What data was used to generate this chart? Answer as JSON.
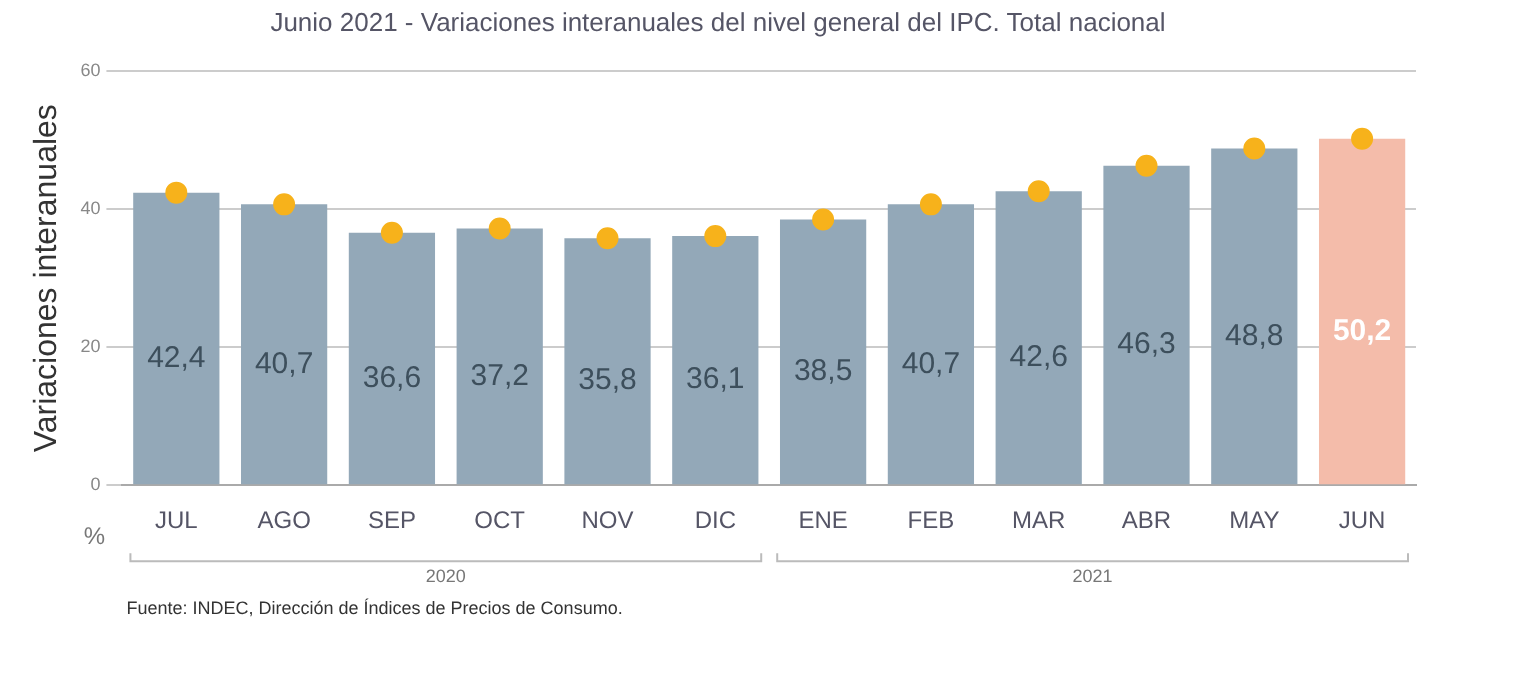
{
  "chart_data": {
    "type": "bar",
    "title": "Junio 2021 - Variaciones interanuales del nivel general del IPC. Total nacional",
    "ylabel": "Variaciones interanuales",
    "categories": [
      "JUL",
      "AGO",
      "SEP",
      "OCT",
      "NOV",
      "DIC",
      "ENE",
      "FEB",
      "MAR",
      "ABR",
      "MAY",
      "JUN"
    ],
    "series": [
      {
        "values": [
          42.4,
          40.7,
          36.6,
          37.2,
          35.8,
          36.1,
          38.5,
          40.7,
          42.6,
          46.3,
          48.8,
          50.2
        ],
        "colors": [
          "#93a8b8",
          "#93a8b8",
          "#93a8b8",
          "#93a8b8",
          "#93a8b8",
          "#93a8b8",
          "#93a8b8",
          "#93a8b8",
          "#93a8b8",
          "#93a8b8",
          "#93a8b8",
          "#f4bcaa"
        ],
        "value_labels": [
          "42,4",
          "40,7",
          "36,6",
          "37,2",
          "35,8",
          "36,1",
          "38,5",
          "40,7",
          "42,6",
          "46,3",
          "48,8",
          "50,2"
        ]
      },
      {
        "type": "scatter",
        "color": "#f7b21b",
        "x": [
          "JUL",
          "AGO",
          "SEP",
          "OCT",
          "NOV",
          "DIC",
          "ENE",
          "FEB",
          "MAR",
          "ABR",
          "MAY",
          "JUN"
        ],
        "values": [
          42.4,
          40.7,
          36.6,
          37.2,
          35.8,
          36.1,
          38.5,
          40.7,
          42.6,
          46.3,
          48.8,
          50.2
        ]
      }
    ],
    "ylim": [
      0,
      60
    ],
    "yticks": [
      0,
      20,
      40,
      60
    ],
    "grid": "y",
    "legend": false,
    "marker": "circle",
    "annotations": [
      "%",
      "2020",
      "2021",
      "Fuente: INDEC, Dirección de Índices de Precios de Consumo."
    ]
  }
}
